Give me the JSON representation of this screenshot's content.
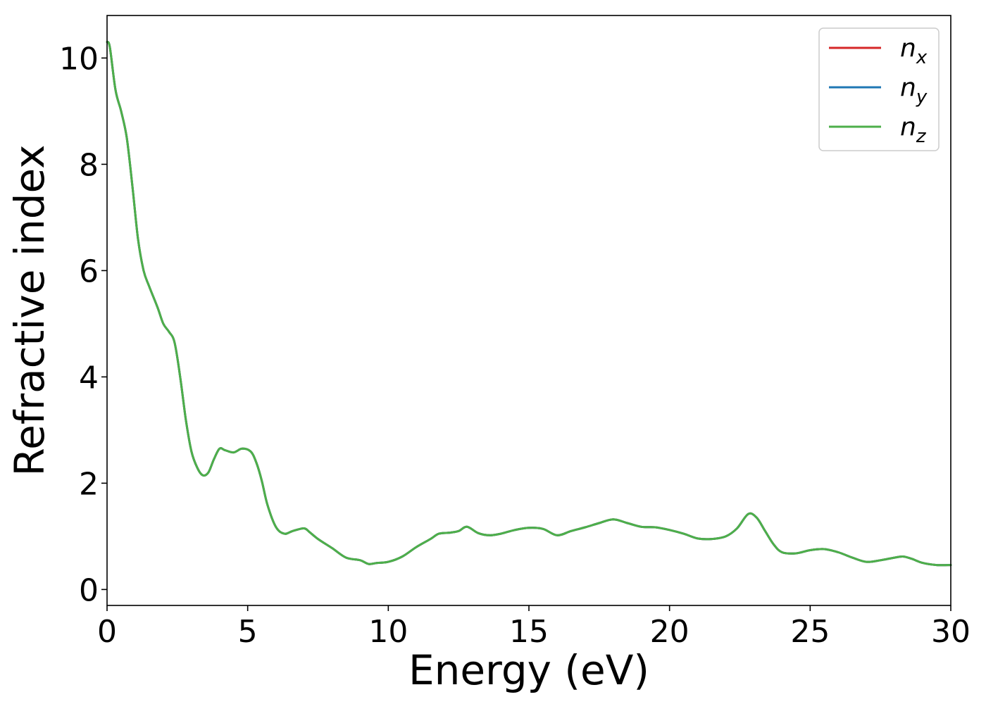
{
  "chart_data": {
    "type": "line",
    "title": "",
    "xlabel": "Energy (eV)",
    "ylabel": "Refractive index",
    "xlim": [
      0,
      30
    ],
    "ylim": [
      -0.3,
      10.8
    ],
    "xticks": [
      0,
      5,
      10,
      15,
      20,
      25,
      30
    ],
    "yticks": [
      0,
      2,
      4,
      6,
      8,
      10
    ],
    "grid": false,
    "legend": "top-right",
    "series": [
      {
        "name": "n",
        "subscript": "x",
        "color": "#d62728"
      },
      {
        "name": "n",
        "subscript": "y",
        "color": "#1f77b4"
      },
      {
        "name": "n",
        "subscript": "z",
        "color": "#4daf4a"
      }
    ],
    "x": [
      0,
      0.1,
      0.3,
      0.5,
      0.7,
      0.9,
      1.1,
      1.3,
      1.5,
      1.8,
      2.0,
      2.2,
      2.4,
      2.6,
      2.8,
      3.0,
      3.2,
      3.4,
      3.6,
      3.8,
      4.0,
      4.2,
      4.5,
      4.8,
      5.1,
      5.3,
      5.5,
      5.7,
      6.0,
      6.3,
      6.6,
      7.0,
      7.2,
      7.5,
      8.0,
      8.5,
      9.0,
      9.3,
      9.6,
      10.0,
      10.5,
      11.0,
      11.5,
      11.8,
      12.2,
      12.5,
      12.8,
      13.2,
      13.6,
      14.0,
      14.5,
      15.0,
      15.5,
      16.0,
      16.5,
      17.0,
      17.5,
      18.0,
      18.5,
      19.0,
      19.5,
      20.0,
      20.5,
      21.0,
      21.5,
      22.0,
      22.4,
      22.8,
      23.1,
      23.4,
      23.7,
      24.0,
      24.5,
      25.0,
      25.5,
      26.0,
      26.5,
      27.0,
      27.5,
      28.0,
      28.3,
      28.6,
      29.0,
      29.5,
      30.0
    ],
    "values": [
      10.3,
      10.2,
      9.4,
      9.0,
      8.5,
      7.6,
      6.6,
      6.0,
      5.7,
      5.3,
      5.0,
      4.85,
      4.65,
      4.0,
      3.2,
      2.6,
      2.3,
      2.15,
      2.2,
      2.45,
      2.65,
      2.62,
      2.58,
      2.65,
      2.6,
      2.4,
      2.05,
      1.6,
      1.18,
      1.05,
      1.1,
      1.15,
      1.08,
      0.95,
      0.78,
      0.6,
      0.55,
      0.48,
      0.5,
      0.52,
      0.62,
      0.8,
      0.95,
      1.05,
      1.07,
      1.1,
      1.18,
      1.06,
      1.02,
      1.05,
      1.12,
      1.16,
      1.14,
      1.02,
      1.1,
      1.17,
      1.25,
      1.32,
      1.25,
      1.18,
      1.17,
      1.12,
      1.05,
      0.96,
      0.95,
      1.0,
      1.15,
      1.42,
      1.35,
      1.1,
      0.85,
      0.7,
      0.68,
      0.74,
      0.76,
      0.7,
      0.6,
      0.52,
      0.55,
      0.6,
      0.62,
      0.58,
      0.5,
      0.46,
      0.46
    ]
  }
}
